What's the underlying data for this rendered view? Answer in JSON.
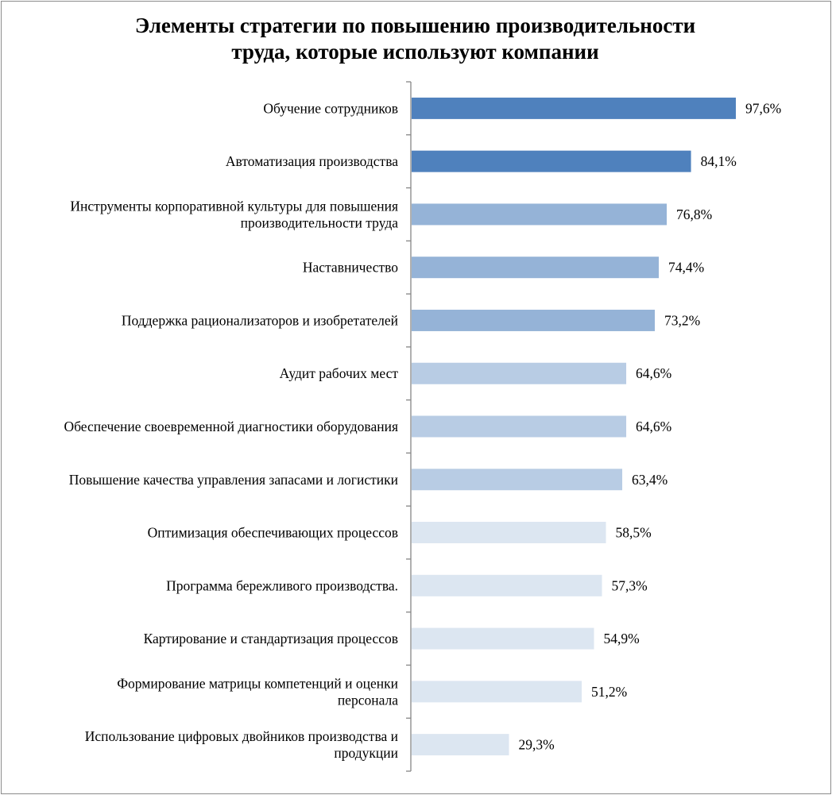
{
  "chart_data": {
    "type": "bar",
    "orientation": "horizontal",
    "title": "Элементы стратегии по повышению производительности труда, которые используют компании",
    "title_lines": [
      "Элементы стратегии по повышению производительности",
      "труда, которые используют компании"
    ],
    "categories": [
      [
        "Обучение сотрудников"
      ],
      [
        "Автоматизация производства"
      ],
      [
        "Инструменты корпоративной культуры для повышения",
        "производительности труда"
      ],
      [
        "Наставничество"
      ],
      [
        "Поддержка рационализаторов и изобретателей"
      ],
      [
        "Аудит рабочих мест"
      ],
      [
        "Обеспечение своевременной диагностики оборудования"
      ],
      [
        "Повышение качества управления запасами и логистики"
      ],
      [
        "Оптимизация обеспечивающих процессов"
      ],
      [
        "Программа бережливого производства."
      ],
      [
        "Картирование и стандартизация процессов"
      ],
      [
        "Формирование матрицы компетенций и оценки",
        "персонала"
      ],
      [
        "Использование цифровых двойников производства и",
        "продукции"
      ]
    ],
    "values": [
      97.6,
      84.1,
      76.8,
      74.4,
      73.2,
      64.6,
      64.6,
      63.4,
      58.5,
      57.3,
      54.9,
      51.2,
      29.3
    ],
    "value_labels": [
      "97,6%",
      "84,1%",
      "76,8%",
      "74,4%",
      "73,2%",
      "64,6%",
      "64,6%",
      "63,4%",
      "58,5%",
      "57,3%",
      "54,9%",
      "51,2%",
      "29,3%"
    ],
    "bar_colors": [
      "#4f81bd",
      "#4f81bd",
      "#95b3d7",
      "#95b3d7",
      "#95b3d7",
      "#b8cce4",
      "#b8cce4",
      "#b8cce4",
      "#dce6f1",
      "#dce6f1",
      "#dce6f1",
      "#dce6f1",
      "#dce6f1"
    ],
    "xlim": [
      0,
      100
    ],
    "grid": false,
    "legend": "none",
    "axis_color": "#868686"
  }
}
